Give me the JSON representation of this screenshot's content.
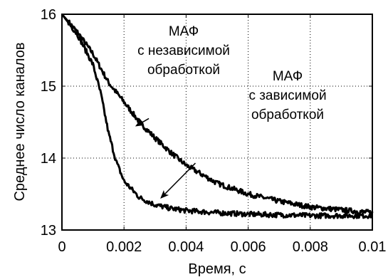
{
  "chart_data": {
    "type": "line",
    "xlabel": "Время, с",
    "ylabel": "Среднее число каналов",
    "xlim": [
      0,
      0.01
    ],
    "ylim": [
      13,
      16
    ],
    "grid": true,
    "x_ticks": [
      "0",
      "0.002",
      "0.004",
      "0.006",
      "0.008",
      "0.01"
    ],
    "y_ticks": [
      "13",
      "14",
      "15",
      "16"
    ],
    "series": [
      {
        "name": "МАФ с независимой обработкой",
        "color": "#000000",
        "x": [
          0,
          0.0005,
          0.001,
          0.0015,
          0.002,
          0.0025,
          0.003,
          0.0035,
          0.004,
          0.005,
          0.006,
          0.007,
          0.008,
          0.009,
          0.01
        ],
        "y": [
          16,
          15.75,
          15.45,
          15.05,
          14.78,
          14.5,
          14.28,
          14.08,
          13.9,
          13.65,
          13.5,
          13.4,
          13.32,
          13.28,
          13.24
        ]
      },
      {
        "name": "МАФ с зависимой обработкой",
        "color": "#000000",
        "x": [
          0,
          0.0005,
          0.001,
          0.00125,
          0.0015,
          0.00175,
          0.002,
          0.0025,
          0.003,
          0.0035,
          0.004,
          0.005,
          0.006,
          0.007,
          0.008,
          0.009,
          0.01
        ],
        "y": [
          16,
          15.72,
          15.3,
          14.9,
          14.35,
          13.95,
          13.68,
          13.45,
          13.35,
          13.3,
          13.27,
          13.24,
          13.22,
          13.21,
          13.2,
          13.2,
          13.2
        ]
      }
    ],
    "annotations": [
      {
        "lines": [
          "МАФ",
          "с независимой",
          "обработкой"
        ],
        "arrow_from": [
          0.0028,
          14.55
        ],
        "arrow_to": [
          0.0024,
          14.45
        ]
      },
      {
        "lines": [
          "МАФ",
          "с зависимой",
          "обработкой"
        ],
        "arrow_from": [
          0.0043,
          13.93
        ],
        "arrow_to": [
          0.0032,
          13.45
        ]
      }
    ]
  }
}
